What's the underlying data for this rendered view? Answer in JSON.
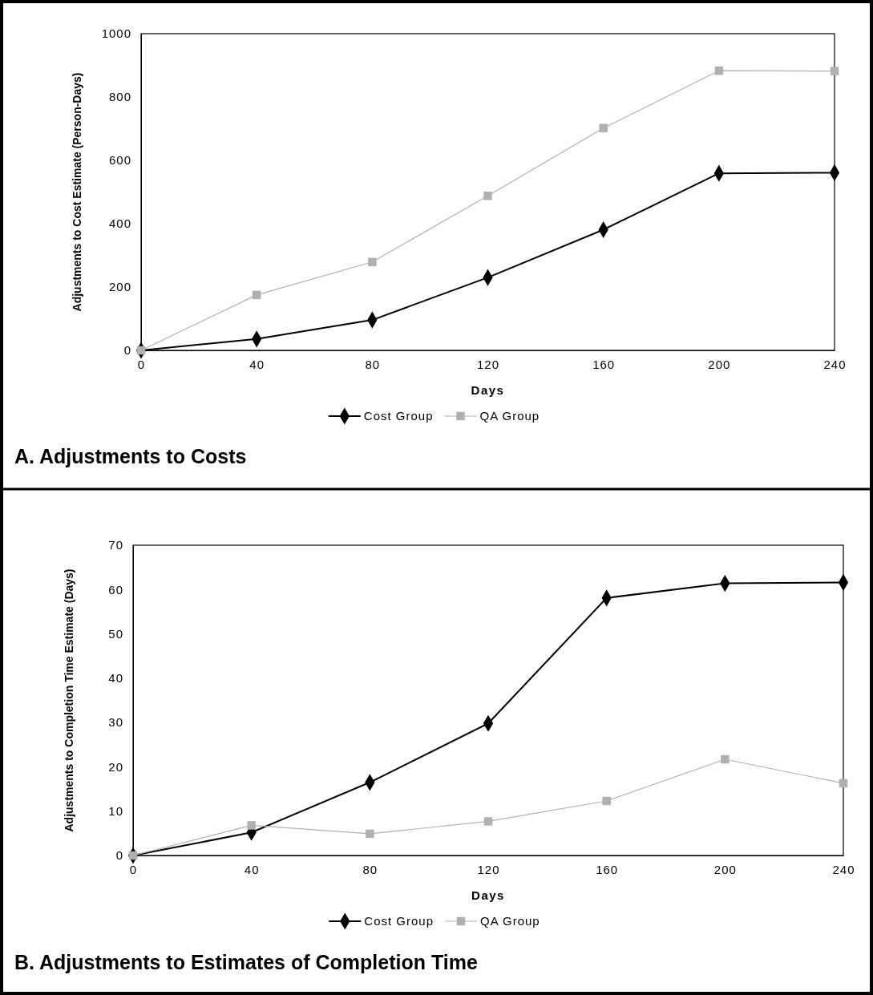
{
  "chart_data": [
    {
      "type": "line",
      "title": "A. Adjustments to Costs",
      "xlabel": "Days",
      "ylabel": "Adjustments to Cost Estimate (Person-Days)",
      "x": [
        0,
        40,
        80,
        120,
        160,
        200,
        240
      ],
      "xlim": [
        0,
        240
      ],
      "xticks": [
        0,
        40,
        80,
        120,
        160,
        200,
        240
      ],
      "ylim": [
        0,
        1000
      ],
      "yticks": [
        0,
        200,
        400,
        600,
        800,
        1000
      ],
      "legend": "bottom",
      "grid": false,
      "series": [
        {
          "name": "Cost Group",
          "color": "#000000",
          "marker": "diamond",
          "values": [
            0,
            36,
            96,
            230,
            381,
            559,
            561
          ]
        },
        {
          "name": "QA Group",
          "color": "#b0b0b0",
          "marker": "square",
          "values": [
            0,
            175,
            279,
            488,
            702,
            883,
            882
          ]
        }
      ]
    },
    {
      "type": "line",
      "title": "B. Adjustments to Estimates of Completion Time",
      "xlabel": "Days",
      "ylabel": "Adjustments to Completion Time Estimate (Days)",
      "x": [
        0,
        40,
        80,
        120,
        160,
        200,
        240
      ],
      "xlim": [
        0,
        240
      ],
      "xticks": [
        0,
        40,
        80,
        120,
        160,
        200,
        240
      ],
      "ylim": [
        0,
        70
      ],
      "yticks": [
        0,
        10,
        20,
        30,
        40,
        50,
        60,
        70
      ],
      "legend": "bottom",
      "grid": false,
      "series": [
        {
          "name": "Cost Group",
          "color": "#000000",
          "marker": "diamond",
          "values": [
            0,
            5.2,
            16.5,
            29.8,
            58.1,
            61.4,
            61.6
          ]
        },
        {
          "name": "QA Group",
          "color": "#b0b0b0",
          "marker": "square",
          "values": [
            0,
            6.8,
            4.9,
            7.7,
            12.3,
            21.7,
            16.3
          ]
        }
      ]
    }
  ]
}
